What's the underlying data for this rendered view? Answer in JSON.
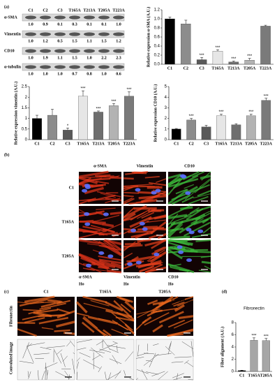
{
  "panels": {
    "a": "(a)",
    "b": "(b)",
    "c": "(c)",
    "d": "(d)"
  },
  "blot": {
    "lanes": [
      "C1",
      "C2",
      "C3",
      "T165A",
      "T213A",
      "T205A",
      "T223A"
    ],
    "rows": [
      {
        "label": "α-SMA",
        "values": [
          "1.0",
          "0.9",
          "0.1",
          "0.3",
          "0.1",
          "0.1",
          "1.0"
        ]
      },
      {
        "label": "Vimentin",
        "values": [
          "1.0",
          "1.2",
          "0.5",
          "1.5",
          "1.1",
          "1.5",
          "1.2"
        ]
      },
      {
        "label": "CD10",
        "values": [
          "1.0",
          "1.9",
          "1.1",
          "1.5",
          "1.0",
          "2.2",
          "2.3"
        ]
      },
      {
        "label": "α-tubulin",
        "values": [
          "1.0",
          "1.0",
          "1.0",
          "0.7",
          "0.8",
          "1.0",
          "0.6"
        ]
      }
    ]
  },
  "chart_data": [
    {
      "type": "bar",
      "ylabel": "Relative expression α-SMA (A.U.)",
      "categories": [
        "C1",
        "C2",
        "C3",
        "T165A",
        "T213A",
        "T205A",
        "T223A"
      ],
      "values": [
        1.0,
        0.89,
        0.1,
        0.29,
        0.05,
        0.09,
        0.84
      ],
      "errors": [
        0.04,
        0.08,
        0.05,
        0.03,
        0.02,
        0.04,
        0.02
      ],
      "colors": [
        "#000000",
        "#8c8c8c",
        "#595959",
        "#e6e6e6",
        "#6e6e6e",
        "#b3b3b3",
        "#7a7a7a"
      ],
      "annotations": [
        null,
        null,
        "***",
        "***",
        "***",
        "***",
        null
      ],
      "ylim": [
        0,
        1.2
      ],
      "yticks": [
        {
          "value": 0,
          "label": "0.0"
        },
        {
          "value": 0.2,
          "label": "0.2"
        },
        {
          "value": 0.4,
          "label": "0.4"
        },
        {
          "value": 0.6,
          "label": "0.6"
        },
        {
          "value": 0.8,
          "label": "0.8"
        },
        {
          "value": 1,
          "label": "1.0"
        },
        {
          "value": 1.2,
          "label": "1.2"
        }
      ]
    },
    {
      "type": "bar",
      "ylabel": "Relative expression vimentin (A.U.)",
      "categories": [
        "C1",
        "C2",
        "C3",
        "T165A",
        "T213A",
        "T205A",
        "T223A"
      ],
      "values": [
        1.0,
        1.15,
        0.45,
        2.05,
        1.3,
        1.6,
        2.05
      ],
      "errors": [
        0.15,
        0.28,
        0.1,
        0.25,
        0.05,
        0.1,
        0.2
      ],
      "colors": [
        "#000000",
        "#8c8c8c",
        "#595959",
        "#e6e6e6",
        "#6e6e6e",
        "#b3b3b3",
        "#7a7a7a"
      ],
      "annotations": [
        null,
        null,
        "*",
        "***",
        "***",
        "***",
        "***"
      ],
      "ylim": [
        0,
        2.5
      ],
      "yticks": [
        0,
        0.5,
        1,
        1.5,
        2,
        2.5
      ]
    },
    {
      "type": "bar",
      "ylabel": "Relative expression CD10 (A.U.)",
      "categories": [
        "C1",
        "C2",
        "C3",
        "T165A",
        "T213A",
        "T205A",
        "T223A"
      ],
      "values": [
        1.0,
        1.85,
        1.2,
        2.25,
        1.4,
        2.25,
        3.7
      ],
      "errors": [
        0.05,
        0.15,
        0.15,
        0.15,
        0.1,
        0.15,
        0.2
      ],
      "colors": [
        "#000000",
        "#8c8c8c",
        "#595959",
        "#e6e6e6",
        "#6e6e6e",
        "#b3b3b3",
        "#7a7a7a"
      ],
      "annotations": [
        null,
        "***",
        null,
        "***",
        null,
        "***",
        "***"
      ],
      "ylim": [
        0,
        5
      ],
      "yticks": [
        0,
        1,
        2,
        3,
        4,
        5
      ]
    },
    {
      "type": "bar",
      "title": "Fibronectin",
      "ylabel": "Fiber alignment (A.U.)",
      "categories": [
        "C1",
        "T165A",
        "T205A"
      ],
      "values": [
        0.15,
        5.1,
        5.05
      ],
      "errors": [
        0.05,
        0.4,
        0.35
      ],
      "colors": [
        "#000000",
        "#a6a6a6",
        "#a6a6a6"
      ],
      "annotations": [
        null,
        "***",
        "***"
      ],
      "ylim": [
        0,
        8
      ],
      "yticks": [
        0,
        2,
        4,
        6,
        8
      ]
    }
  ],
  "microscopy": {
    "columns": [
      "α-SMA",
      "Vimentin",
      "CD10"
    ],
    "rows": [
      "C1",
      "T165A",
      "T205A"
    ],
    "legend": [
      [
        "α-SMA",
        "Ho"
      ],
      [
        "Vimentin",
        "Ho"
      ],
      [
        "CD10",
        "Ho"
      ]
    ]
  },
  "fibronectin_panel": {
    "columns": [
      "C1",
      "T165A",
      "T205A"
    ],
    "rows": [
      "Fibronectin",
      "Convoluted image"
    ],
    "stain_label": "Fibronectin"
  }
}
